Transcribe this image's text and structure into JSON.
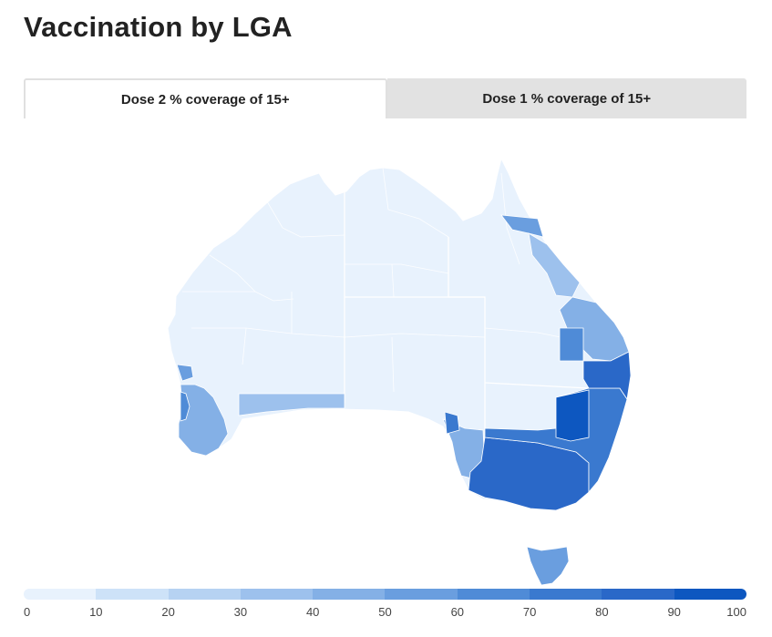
{
  "page": {
    "title": "Vaccination by LGA"
  },
  "tabs": [
    {
      "label": "Dose 2 % coverage of 15+",
      "active": true
    },
    {
      "label": "Dose 1 % coverage of 15+",
      "active": false
    }
  ],
  "legend": {
    "ticks": [
      "0",
      "10",
      "20",
      "30",
      "40",
      "50",
      "60",
      "70",
      "80",
      "90",
      "100"
    ],
    "colors": [
      "#e8f2fd",
      "#cde2f8",
      "#b6d2f2",
      "#9dc1ed",
      "#84b0e6",
      "#6a9edf",
      "#4f8bd7",
      "#3a79cf",
      "#2a68c8",
      "#0d57c0"
    ]
  },
  "map": {
    "region": "Australia",
    "colors": {
      "low": "#e8f2fd",
      "border": "#ffffff"
    }
  }
}
